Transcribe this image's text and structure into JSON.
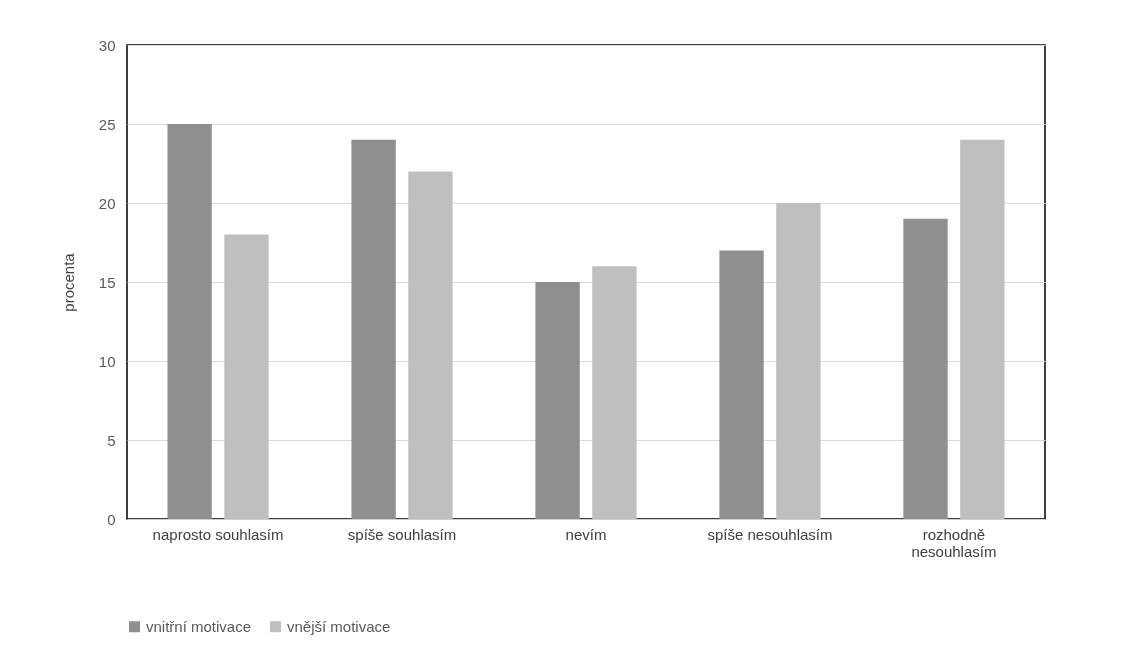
{
  "chart_data": {
    "type": "bar",
    "ylabel": "procenta",
    "categories": [
      "naprosto souhlasím",
      "spíše souhlasím",
      "nevím",
      "spíše nesouhlasím",
      "rozhodně nesouhlasím"
    ],
    "series": [
      {
        "name": "vnitřní motivace",
        "color": "#8f8f8f",
        "values": [
          25,
          24,
          15,
          17,
          19
        ]
      },
      {
        "name": "vnější motivace",
        "color": "#bfbfbf",
        "values": [
          18,
          22,
          16,
          20,
          24
        ]
      }
    ],
    "ylim": [
      0,
      30
    ],
    "yticks": [
      0,
      5,
      10,
      15,
      20,
      25,
      30
    ],
    "grid": "y",
    "legend": "bottom"
  }
}
